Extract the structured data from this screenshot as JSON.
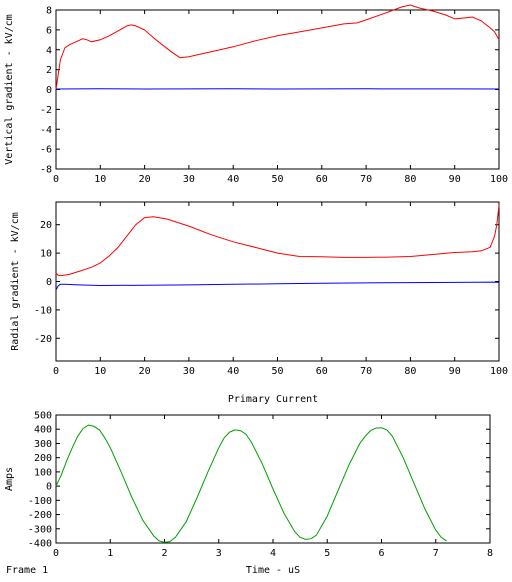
{
  "frame_label": "Frame 1",
  "chart_data": [
    {
      "type": "line",
      "ylabel": "Vertical gradient - kV/cm",
      "xlim": [
        0,
        100
      ],
      "ylim": [
        -8,
        8
      ],
      "xticks": [
        0,
        10,
        20,
        30,
        40,
        50,
        60,
        70,
        80,
        90,
        100
      ],
      "yticks": [
        -8,
        -6,
        -4,
        -2,
        0,
        2,
        4,
        6,
        8
      ],
      "series": [
        {
          "color": "#ff0000",
          "x": [
            0,
            0.5,
            1,
            2,
            3,
            4,
            5,
            6,
            7,
            8,
            10,
            12,
            14,
            16,
            17,
            18,
            20,
            22,
            24,
            26,
            28,
            30,
            33,
            36,
            40,
            45,
            50,
            55,
            60,
            65,
            68,
            70,
            75,
            78,
            80,
            82,
            85,
            88,
            90,
            92,
            94,
            96,
            98,
            99,
            100
          ],
          "y": [
            0,
            1.5,
            3.0,
            4.2,
            4.5,
            4.7,
            4.9,
            5.1,
            5.0,
            4.8,
            5.0,
            5.4,
            5.9,
            6.4,
            6.5,
            6.4,
            6.0,
            5.2,
            4.5,
            3.8,
            3.2,
            3.3,
            3.6,
            3.9,
            4.3,
            4.9,
            5.4,
            5.8,
            6.2,
            6.6,
            6.7,
            7.0,
            7.8,
            8.3,
            8.5,
            8.2,
            7.9,
            7.5,
            7.1,
            7.2,
            7.3,
            6.9,
            6.2,
            5.8,
            5.0
          ]
        },
        {
          "color": "#0000ff",
          "x": [
            0,
            10,
            20,
            30,
            40,
            50,
            60,
            70,
            80,
            90,
            100
          ],
          "y": [
            0.05,
            0.08,
            0.05,
            0.06,
            0.07,
            0.05,
            0.06,
            0.07,
            0.06,
            0.06,
            0.05
          ]
        }
      ]
    },
    {
      "type": "line",
      "ylabel": "Radial gradient - kV/cm",
      "xlim": [
        0,
        100
      ],
      "ylim": [
        -28,
        28
      ],
      "xticks": [
        0,
        10,
        20,
        30,
        40,
        50,
        60,
        70,
        80,
        90,
        100
      ],
      "yticks": [
        -20,
        -10,
        0,
        10,
        20
      ],
      "series": [
        {
          "color": "#ff0000",
          "x": [
            0,
            0.5,
            1,
            3,
            5,
            8,
            10,
            12,
            14,
            16,
            18,
            20,
            22,
            25,
            30,
            35,
            40,
            45,
            50,
            55,
            60,
            65,
            70,
            75,
            80,
            85,
            90,
            94,
            96,
            98,
            99,
            99.5,
            100
          ],
          "y": [
            3,
            2.2,
            2.0,
            2.5,
            3.5,
            5.0,
            6.5,
            9,
            12,
            16,
            20,
            22.5,
            22.8,
            22,
            19.5,
            16.5,
            14,
            12,
            10,
            8.8,
            8.7,
            8.5,
            8.5,
            8.6,
            8.8,
            9.5,
            10.2,
            10.5,
            10.8,
            12,
            16,
            20,
            27
          ]
        },
        {
          "color": "#0000ff",
          "x": [
            0,
            0.5,
            1,
            2,
            5,
            10,
            20,
            30,
            40,
            50,
            60,
            70,
            80,
            90,
            99,
            100
          ],
          "y": [
            -3,
            -1.5,
            -1.0,
            -1.0,
            -1.2,
            -1.4,
            -1.3,
            -1.2,
            -1.0,
            -0.8,
            -0.6,
            -0.5,
            -0.4,
            -0.3,
            -0.2,
            -0.3
          ]
        }
      ]
    },
    {
      "type": "line",
      "title": "Primary Current",
      "xlabel": "Time - uS",
      "ylabel": "Amps",
      "xlim": [
        0,
        8
      ],
      "ylim": [
        -400,
        500
      ],
      "xticks": [
        0,
        1,
        2,
        3,
        4,
        5,
        6,
        7,
        8
      ],
      "yticks": [
        -400,
        -300,
        -200,
        -100,
        0,
        100,
        200,
        300,
        400,
        500
      ],
      "series": [
        {
          "color": "#00a000",
          "x": [
            0,
            0.1,
            0.2,
            0.3,
            0.4,
            0.5,
            0.6,
            0.7,
            0.8,
            0.9,
            1.0,
            1.2,
            1.4,
            1.6,
            1.8,
            1.9,
            2.0,
            2.1,
            2.2,
            2.4,
            2.6,
            2.8,
            3.0,
            3.1,
            3.2,
            3.3,
            3.4,
            3.5,
            3.6,
            3.8,
            4.0,
            4.2,
            4.4,
            4.5,
            4.6,
            4.7,
            4.8,
            5.0,
            5.2,
            5.4,
            5.6,
            5.7,
            5.8,
            5.9,
            6.0,
            6.1,
            6.2,
            6.4,
            6.6,
            6.8,
            7.0,
            7.1,
            7.2
          ],
          "y": [
            0,
            80,
            180,
            270,
            350,
            405,
            430,
            420,
            395,
            340,
            270,
            100,
            -80,
            -240,
            -350,
            -385,
            -395,
            -390,
            -360,
            -250,
            -80,
            100,
            270,
            340,
            380,
            395,
            390,
            365,
            310,
            160,
            -20,
            -190,
            -320,
            -360,
            -375,
            -370,
            -345,
            -210,
            -30,
            150,
            300,
            350,
            390,
            408,
            410,
            395,
            350,
            200,
            20,
            -160,
            -310,
            -360,
            -385
          ]
        }
      ]
    }
  ]
}
